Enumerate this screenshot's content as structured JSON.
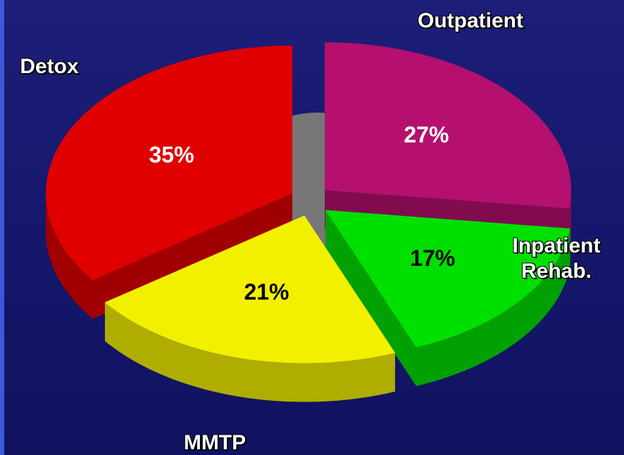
{
  "chart_data": {
    "type": "pie",
    "categories": [
      "Outpatient",
      "Inpatient Rehab.",
      "MMTP",
      "Detox"
    ],
    "values": [
      27,
      17,
      21,
      35
    ],
    "value_labels": [
      "27%",
      "17%",
      "21%",
      "35%"
    ],
    "colors": [
      "#b5106f",
      "#00e000",
      "#f2f000",
      "#e00000"
    ]
  }
}
